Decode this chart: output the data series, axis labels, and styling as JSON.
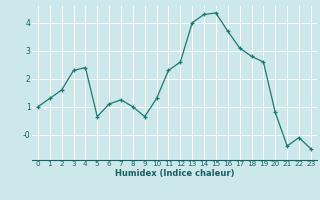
{
  "x": [
    0,
    1,
    2,
    3,
    4,
    5,
    6,
    7,
    8,
    9,
    10,
    11,
    12,
    13,
    14,
    15,
    16,
    17,
    18,
    19,
    20,
    21,
    22,
    23
  ],
  "y": [
    1.0,
    1.3,
    1.6,
    2.3,
    2.4,
    0.65,
    1.1,
    1.25,
    1.0,
    0.65,
    1.3,
    2.3,
    2.6,
    4.0,
    4.3,
    4.35,
    3.7,
    3.1,
    2.8,
    2.6,
    0.8,
    -0.4,
    -0.1,
    -0.5
  ],
  "xlabel": "Humidex (Indice chaleur)",
  "line_color": "#1a7a6e",
  "marker": "+",
  "bg_color": "#cce8ea",
  "grid_color": "#ffffff",
  "axis_color": "#1a7a6e",
  "text_color": "#1a6060",
  "ylim": [
    -0.9,
    4.6
  ],
  "xlim": [
    -0.5,
    23.5
  ],
  "yticks": [
    0,
    1,
    2,
    3,
    4
  ],
  "ytick_labels": [
    "-0",
    "1",
    "2",
    "3",
    "4"
  ],
  "xticks": [
    0,
    1,
    2,
    3,
    4,
    5,
    6,
    7,
    8,
    9,
    10,
    11,
    12,
    13,
    14,
    15,
    16,
    17,
    18,
    19,
    20,
    21,
    22,
    23
  ],
  "xlabel_fontsize": 6.0,
  "tick_fontsize": 5.2
}
